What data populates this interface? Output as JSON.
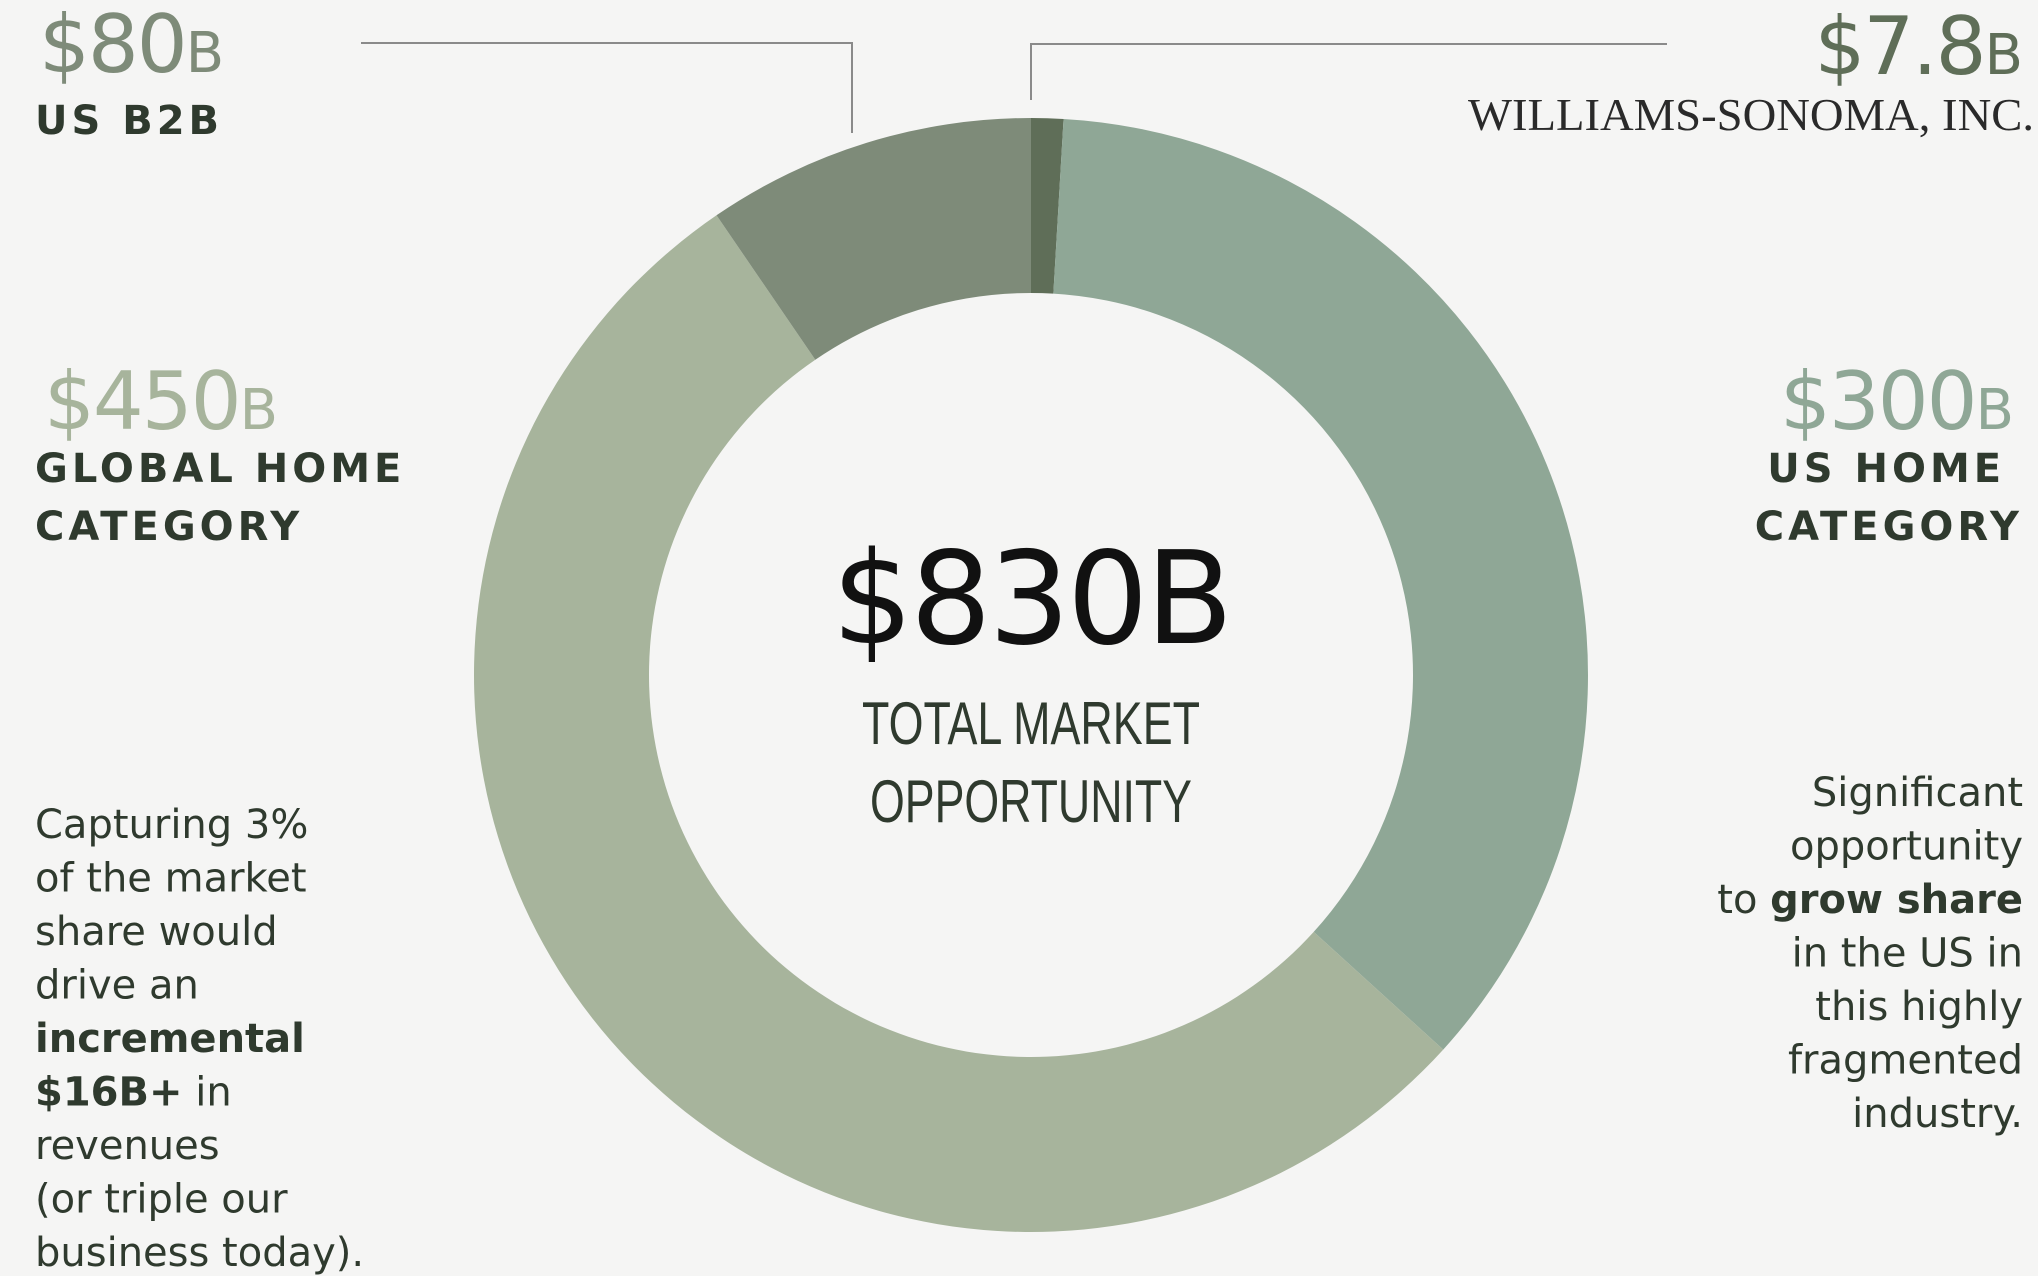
{
  "chart_data": {
    "type": "donut",
    "categories": [
      "WILLIAMS-SONOMA, INC.",
      "US HOME CATEGORY",
      "GLOBAL HOME CATEGORY",
      "US B2B"
    ],
    "values": [
      7.8,
      300,
      450,
      80
    ],
    "value_labels": [
      "$7.8B",
      "$300B",
      "$450B",
      "$80B"
    ],
    "colors": [
      "#5f6e58",
      "#8fa796",
      "#a7b49c",
      "#7e8b79"
    ],
    "center_label": "$830B",
    "center_caption": [
      "TOTAL MARKET",
      "OPPORTUNITY"
    ],
    "annotations": [
      {
        "lines": [
          [
            {
              "text": "Capturing 3%"
            }
          ],
          [
            {
              "text": "of the market"
            }
          ],
          [
            {
              "text": "share would"
            }
          ],
          [
            {
              "text": "drive an"
            }
          ],
          [
            {
              "text": "incremental",
              "bold": true
            }
          ],
          [
            {
              "text": "$16B+",
              "bold": true
            },
            {
              "text": " in"
            }
          ],
          [
            {
              "text": "revenues"
            }
          ],
          [
            {
              "text": "(or triple our"
            }
          ],
          [
            {
              "text": "business today)."
            }
          ]
        ]
      },
      {
        "lines": [
          [
            {
              "text": "Significant"
            }
          ],
          [
            {
              "text": "opportunity"
            }
          ],
          [
            {
              "text": "to "
            },
            {
              "text": "grow share",
              "bold": true
            }
          ],
          [
            {
              "text": "in the US in"
            }
          ],
          [
            {
              "text": "this highly"
            }
          ],
          [
            {
              "text": "fragmented"
            }
          ],
          [
            {
              "text": "industry."
            }
          ]
        ]
      }
    ]
  }
}
